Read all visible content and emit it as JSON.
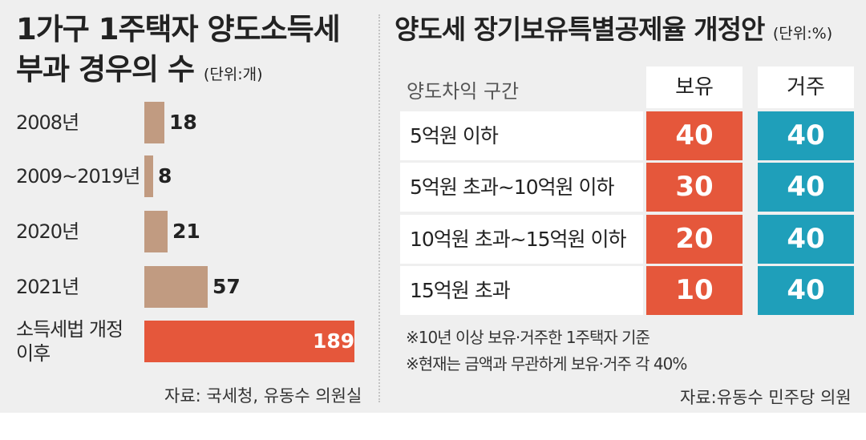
{
  "chart_data": [
    {
      "type": "bar",
      "orientation": "horizontal",
      "title": "1가구 1주택자 양도소득세 부과 경우의 수",
      "unit": "(단위:개)",
      "categories": [
        "2008년",
        "2009~2019년",
        "2020년",
        "2021년",
        "소득세법 개정 이후"
      ],
      "values": [
        18,
        8,
        21,
        57,
        189
      ],
      "bar_colors": [
        "#c19b81",
        "#c19b81",
        "#c19b81",
        "#c19b81",
        "#e5573b"
      ],
      "source": "자료: 국세청, 유동수 의원실"
    },
    {
      "type": "table",
      "title": "양도세 장기보유특별공제율 개정안",
      "unit": "(단위:%)",
      "header_label": "양도차익 구간",
      "columns": [
        "보유",
        "거주"
      ],
      "rows": [
        {
          "label": "5억원 이하",
          "values": [
            "40",
            "40"
          ]
        },
        {
          "label": "5억원 초과~10억원 이하",
          "values": [
            "30",
            "40"
          ]
        },
        {
          "label": "10억원 초과~15억원 이하",
          "values": [
            "20",
            "40"
          ]
        },
        {
          "label": "15억원 초과",
          "values": [
            "10",
            "40"
          ]
        }
      ],
      "notes": [
        "※10년 이상 보유·거주한 1주택자 기준",
        "※현재는 금액과 무관하게 보유·거주 각 40%"
      ],
      "source": "자료:유동수 민주당 의원",
      "column_colors": [
        "#e5573b",
        "#1f9fba"
      ]
    }
  ]
}
